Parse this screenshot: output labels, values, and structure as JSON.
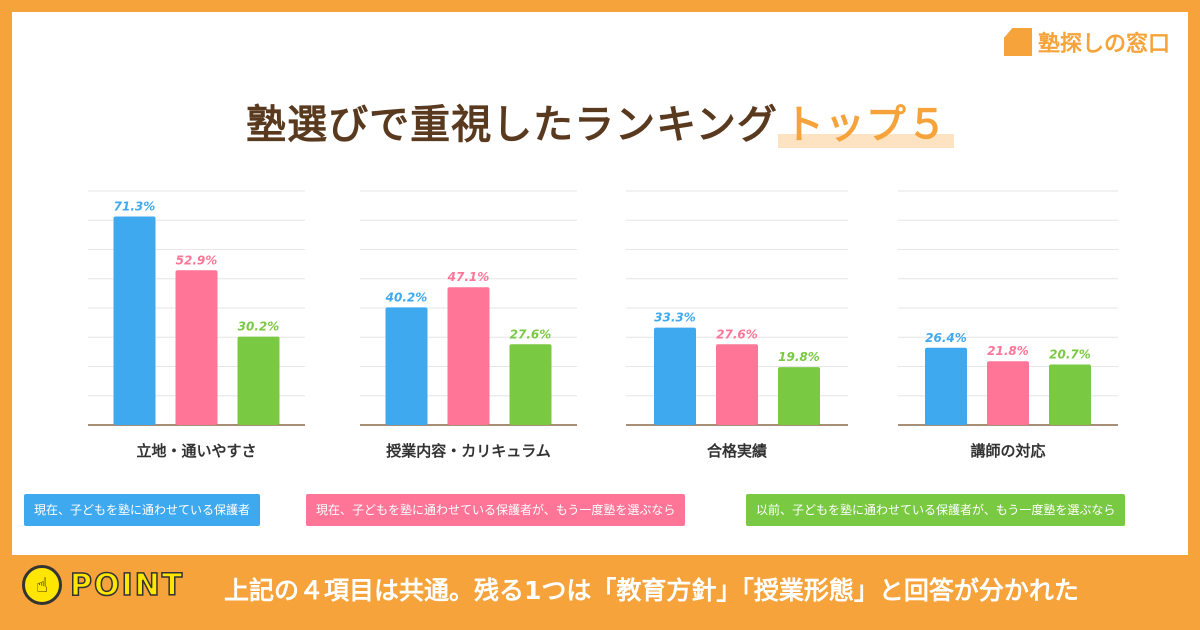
{
  "logo": {
    "text": "塾探しの窓口"
  },
  "title": {
    "main": "塾選びで重視したランキング",
    "highlight": "トップ５"
  },
  "chart_data": {
    "type": "bar",
    "categories": [
      "立地・通いやすさ",
      "授業内容・カリキュラム",
      "合格実績",
      "講師の対応"
    ],
    "ylim": [
      0,
      80
    ],
    "grid": true,
    "series": [
      {
        "name": "現在、子どもを塾に通わせている保護者",
        "color": "#3fa9f0",
        "values": [
          71.3,
          40.2,
          33.3,
          26.4
        ],
        "labels": [
          "71.3%",
          "40.2%",
          "33.3%",
          "26.4%"
        ]
      },
      {
        "name": "現在、子どもを塾に通わせている保護者が、もう一度塾を選ぶなら",
        "color": "#ff7597",
        "values": [
          52.9,
          47.1,
          27.6,
          21.8
        ],
        "labels": [
          "52.9%",
          "47.1%",
          "27.6%",
          "21.8%"
        ]
      },
      {
        "name": "以前、子どもを塾に通わせている保護者が、もう一度塾を選ぶなら",
        "color": "#7ac943",
        "values": [
          30.2,
          27.6,
          19.8,
          20.7
        ],
        "labels": [
          "30.2%",
          "27.6%",
          "19.8%",
          "20.7%"
        ]
      }
    ]
  },
  "point": {
    "label": "POINT",
    "message": "上記の４項目は共通。残る1つは「教育方針」「授業形態」と回答が分かれた"
  }
}
